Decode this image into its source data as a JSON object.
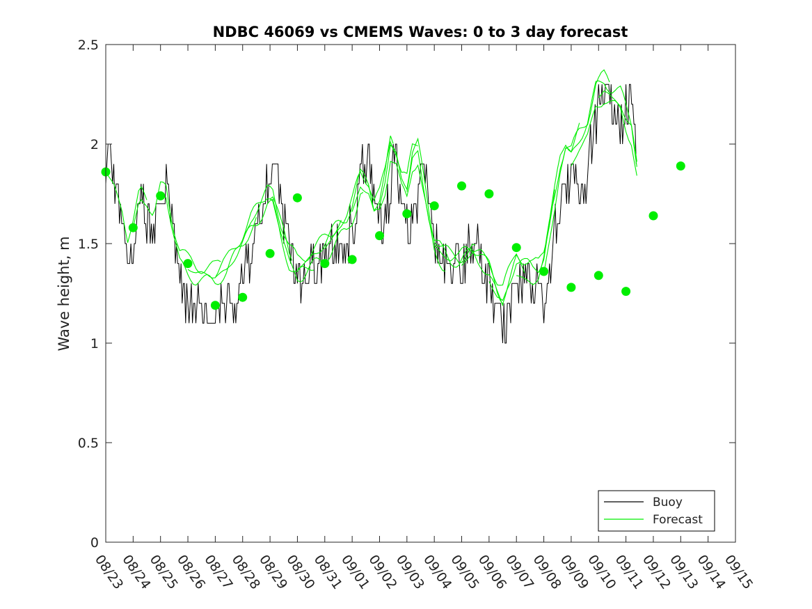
{
  "chart_data": {
    "type": "line",
    "title": "NDBC 46069 vs CMEMS Waves: 0 to 3 day forecast",
    "xlabel": "",
    "ylabel": "Wave height, m",
    "ylim": [
      0,
      2.5
    ],
    "yticks": [
      "0",
      "0.5",
      "1",
      "1.5",
      "2",
      "2.5"
    ],
    "xticks": [
      "08/23",
      "08/24",
      "08/25",
      "08/26",
      "08/27",
      "08/28",
      "08/29",
      "08/30",
      "08/31",
      "09/01",
      "09/02",
      "09/03",
      "09/04",
      "09/05",
      "09/06",
      "09/07",
      "09/08",
      "09/09",
      "09/10",
      "09/11",
      "09/12",
      "09/13",
      "09/14",
      "09/15"
    ],
    "grid": false,
    "legend": {
      "position": "bottom-right",
      "entries": [
        "Buoy",
        "Forecast"
      ]
    },
    "colors": {
      "buoy": "#000000",
      "forecast": "#00ee00"
    },
    "buoy_anchors": [
      [
        0,
        1.9
      ],
      [
        0.15,
        2.0
      ],
      [
        0.3,
        1.8
      ],
      [
        0.5,
        1.7
      ],
      [
        0.7,
        1.55
      ],
      [
        0.9,
        1.35
      ],
      [
        1.0,
        1.5
      ],
      [
        1.15,
        1.7
      ],
      [
        1.3,
        1.8
      ],
      [
        1.5,
        1.6
      ],
      [
        1.8,
        1.55
      ],
      [
        2.0,
        1.7
      ],
      [
        2.2,
        1.75
      ],
      [
        2.4,
        1.6
      ],
      [
        2.6,
        1.45
      ],
      [
        2.8,
        1.25
      ],
      [
        3.0,
        1.2
      ],
      [
        3.3,
        1.2
      ],
      [
        3.6,
        1.15
      ],
      [
        3.9,
        1.2
      ],
      [
        4.2,
        1.25
      ],
      [
        4.5,
        1.15
      ],
      [
        4.8,
        1.2
      ],
      [
        5.0,
        1.35
      ],
      [
        5.3,
        1.45
      ],
      [
        5.6,
        1.6
      ],
      [
        5.9,
        1.75
      ],
      [
        6.2,
        1.9
      ],
      [
        6.5,
        1.65
      ],
      [
        6.8,
        1.45
      ],
      [
        7.0,
        1.35
      ],
      [
        7.2,
        1.3
      ],
      [
        7.5,
        1.4
      ],
      [
        7.8,
        1.4
      ],
      [
        8.0,
        1.45
      ],
      [
        8.3,
        1.5
      ],
      [
        8.6,
        1.55
      ],
      [
        8.9,
        1.55
      ],
      [
        9.1,
        1.6
      ],
      [
        9.3,
        1.85
      ],
      [
        9.5,
        1.95
      ],
      [
        9.7,
        1.85
      ],
      [
        9.9,
        1.7
      ],
      [
        10.1,
        1.6
      ],
      [
        10.3,
        1.7
      ],
      [
        10.5,
        1.9
      ],
      [
        10.7,
        1.85
      ],
      [
        10.9,
        1.7
      ],
      [
        11.1,
        1.6
      ],
      [
        11.3,
        1.7
      ],
      [
        11.5,
        1.85
      ],
      [
        11.7,
        1.8
      ],
      [
        11.9,
        1.6
      ],
      [
        12.1,
        1.45
      ],
      [
        12.3,
        1.4
      ],
      [
        12.5,
        1.4
      ],
      [
        12.7,
        1.35
      ],
      [
        12.9,
        1.4
      ],
      [
        13.1,
        1.4
      ],
      [
        13.3,
        1.45
      ],
      [
        13.6,
        1.5
      ],
      [
        13.9,
        1.35
      ],
      [
        14.1,
        1.2
      ],
      [
        14.4,
        1.1
      ],
      [
        14.7,
        1.15
      ],
      [
        14.9,
        1.25
      ],
      [
        15.2,
        1.35
      ],
      [
        15.5,
        1.3
      ],
      [
        15.8,
        1.25
      ],
      [
        16.0,
        1.2
      ],
      [
        16.2,
        1.35
      ],
      [
        16.4,
        1.55
      ],
      [
        16.6,
        1.7
      ],
      [
        16.8,
        1.75
      ],
      [
        17.0,
        1.85
      ],
      [
        17.2,
        1.8
      ],
      [
        17.4,
        1.7
      ],
      [
        17.6,
        1.85
      ],
      [
        17.8,
        2.05
      ],
      [
        18.0,
        2.2
      ],
      [
        18.2,
        2.3
      ],
      [
        18.4,
        2.25
      ],
      [
        18.6,
        2.15
      ],
      [
        18.8,
        2.1
      ],
      [
        19.0,
        2.25
      ],
      [
        19.2,
        2.2
      ],
      [
        19.4,
        2.0
      ]
    ],
    "forecast_anchors": [
      [
        0,
        1.86
      ],
      [
        0.3,
        1.78
      ],
      [
        0.6,
        1.65
      ],
      [
        0.8,
        1.5
      ],
      [
        1.0,
        1.58
      ],
      [
        1.25,
        1.72
      ],
      [
        1.5,
        1.68
      ],
      [
        1.75,
        1.6
      ],
      [
        2.0,
        1.74
      ],
      [
        2.2,
        1.74
      ],
      [
        2.45,
        1.56
      ],
      [
        2.7,
        1.42
      ],
      [
        3.0,
        1.37
      ],
      [
        3.3,
        1.34
      ],
      [
        3.6,
        1.33
      ],
      [
        4.0,
        1.33
      ],
      [
        4.4,
        1.38
      ],
      [
        4.7,
        1.45
      ],
      [
        5.0,
        1.52
      ],
      [
        5.3,
        1.6
      ],
      [
        5.6,
        1.66
      ],
      [
        5.9,
        1.73
      ],
      [
        6.1,
        1.72
      ],
      [
        6.4,
        1.56
      ],
      [
        6.7,
        1.43
      ],
      [
        7.0,
        1.37
      ],
      [
        7.3,
        1.39
      ],
      [
        7.6,
        1.43
      ],
      [
        7.9,
        1.46
      ],
      [
        8.2,
        1.5
      ],
      [
        8.5,
        1.56
      ],
      [
        8.8,
        1.6
      ],
      [
        9.0,
        1.66
      ],
      [
        9.3,
        1.8
      ],
      [
        9.6,
        1.76
      ],
      [
        9.8,
        1.66
      ],
      [
        10.0,
        1.69
      ],
      [
        10.2,
        1.8
      ],
      [
        10.4,
        1.97
      ],
      [
        10.6,
        1.92
      ],
      [
        10.8,
        1.8
      ],
      [
        11.0,
        1.76
      ],
      [
        11.2,
        1.92
      ],
      [
        11.4,
        1.95
      ],
      [
        11.6,
        1.78
      ],
      [
        11.8,
        1.62
      ],
      [
        12.0,
        1.49
      ],
      [
        12.3,
        1.43
      ],
      [
        12.6,
        1.39
      ],
      [
        12.9,
        1.38
      ],
      [
        13.1,
        1.4
      ],
      [
        13.4,
        1.42
      ],
      [
        13.7,
        1.38
      ],
      [
        14.0,
        1.31
      ],
      [
        14.3,
        1.2
      ],
      [
        14.5,
        1.16
      ],
      [
        14.8,
        1.26
      ],
      [
        15.0,
        1.34
      ],
      [
        15.3,
        1.3
      ],
      [
        15.6,
        1.27
      ],
      [
        15.8,
        1.28
      ],
      [
        16.0,
        1.35
      ],
      [
        16.2,
        1.5
      ],
      [
        16.4,
        1.66
      ],
      [
        16.6,
        1.83
      ],
      [
        16.8,
        1.92
      ],
      [
        17.0,
        1.89
      ],
      [
        17.3,
        1.98
      ],
      [
        17.6,
        2.05
      ],
      [
        17.9,
        2.22
      ],
      [
        18.2,
        2.26
      ],
      [
        18.5,
        2.22
      ],
      [
        18.8,
        2.2
      ],
      [
        19.0,
        2.12
      ],
      [
        19.2,
        2.05
      ],
      [
        19.4,
        1.86
      ]
    ],
    "forecast_members": [
      {
        "start": 0,
        "end": 1.5,
        "bias": 0.04
      },
      {
        "start": 1,
        "end": 4.2,
        "bias": 0.05
      },
      {
        "start": 2,
        "end": 5.5,
        "bias": -0.02
      },
      {
        "start": 3,
        "end": 6.8,
        "bias": 0.03
      },
      {
        "start": 4,
        "end": 7.6,
        "bias": -0.03
      },
      {
        "start": 5,
        "end": 8.6,
        "bias": 0.05
      },
      {
        "start": 6,
        "end": 9.4,
        "bias": -0.04
      },
      {
        "start": 7,
        "end": 10.5,
        "bias": 0.04
      },
      {
        "start": 8,
        "end": 11.4,
        "bias": 0.06
      },
      {
        "start": 9,
        "end": 12.4,
        "bias": -0.03
      },
      {
        "start": 10,
        "end": 13.5,
        "bias": 0.05
      },
      {
        "start": 11,
        "end": 14.5,
        "bias": 0.03
      },
      {
        "start": 12,
        "end": 15.3,
        "bias": 0.07
      },
      {
        "start": 13,
        "end": 16.4,
        "bias": 0.12
      },
      {
        "start": 14,
        "end": 17.3,
        "bias": 0.1
      },
      {
        "start": 15,
        "end": 18.4,
        "bias": 0.08
      },
      {
        "start": 16,
        "end": 19.4,
        "bias": 0.06
      },
      {
        "start": 17,
        "end": 19.4,
        "bias": -0.03
      },
      {
        "start": 18,
        "end": 19.4,
        "bias": 0.02
      }
    ],
    "forecast_markers": [
      [
        0,
        1.86
      ],
      [
        1,
        1.58
      ],
      [
        2,
        1.74
      ],
      [
        3,
        1.4
      ],
      [
        4,
        1.19
      ],
      [
        5,
        1.23
      ],
      [
        6,
        1.45
      ],
      [
        7,
        1.73
      ],
      [
        8,
        1.4
      ],
      [
        9,
        1.42
      ],
      [
        10,
        1.54
      ],
      [
        11,
        1.65
      ],
      [
        12,
        1.69
      ],
      [
        13,
        1.79
      ],
      [
        14,
        1.75
      ],
      [
        15,
        1.48
      ],
      [
        16,
        1.36
      ],
      [
        17,
        1.28
      ],
      [
        18,
        1.34
      ],
      [
        19,
        1.26
      ],
      [
        20,
        1.64
      ],
      [
        21,
        1.89
      ]
    ]
  }
}
